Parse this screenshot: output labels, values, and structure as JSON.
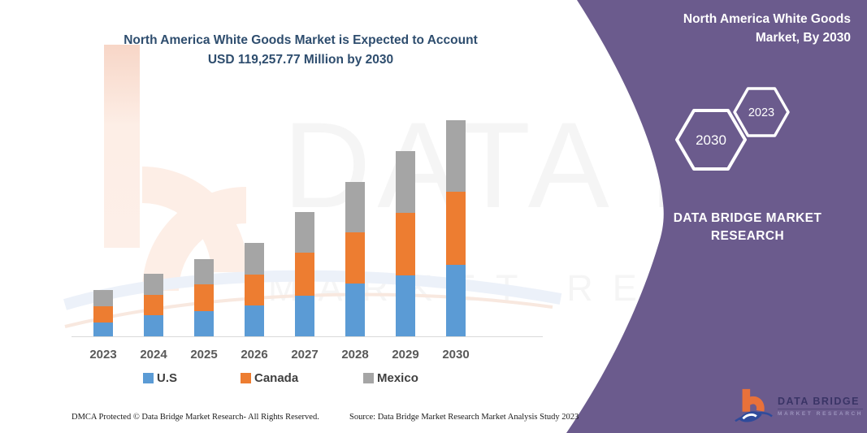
{
  "header": {
    "title_line1": "North America White Goods Market is Expected to Account",
    "title_line2": "USD 119,257.77 Million by 2030"
  },
  "side_panel": {
    "panel_color": "#6b5b8d",
    "title_line1": "North America White Goods",
    "title_line2": "Market, By 2030",
    "hexagons": [
      {
        "label": "2030"
      },
      {
        "label": "2023"
      }
    ],
    "brand_line1": "DATA BRIDGE MARKET",
    "brand_line2": "RESEARCH"
  },
  "logo": {
    "name": "DATA BRIDGE",
    "subtitle": "MARKET RESEARCH"
  },
  "watermark": {
    "line1": "DATA BRI",
    "line2": "MARKET RESEARCH"
  },
  "footer": {
    "left": "DMCA Protected © Data Bridge Market Research-  All Rights Reserved.",
    "right": "Source: Data Bridge Market Research  Market Analysis Study 2023"
  },
  "chart_data": {
    "type": "bar",
    "stacked": true,
    "title": "North America White Goods Market is Expected to Account USD 119,257.77 Million by 2030",
    "unit": "USD Million",
    "categories": [
      "2023",
      "2024",
      "2025",
      "2026",
      "2027",
      "2028",
      "2029",
      "2030"
    ],
    "series": [
      {
        "name": "U.S",
        "color": "#5b9bd5",
        "values": [
          7700,
          11480,
          13940,
          17130,
          22420,
          29140,
          33630,
          39600
        ]
      },
      {
        "name": "Canada",
        "color": "#ed7d31",
        "values": [
          9100,
          11610,
          14710,
          17130,
          23630,
          28380,
          34390,
          40057.77
        ]
      },
      {
        "name": "Mexico",
        "color": "#a5a5a5",
        "values": [
          8600,
          11300,
          13940,
          17260,
          22420,
          27660,
          34390,
          39600
        ]
      }
    ],
    "totals": [
      25400,
      34390,
      42590,
      51520,
      68470,
      85180,
      102410,
      119257.77
    ],
    "ylim": [
      0,
      125000
    ],
    "grid": false,
    "value_axis_hidden": true,
    "legend_position": "bottom",
    "xlabel": "",
    "ylabel": ""
  }
}
